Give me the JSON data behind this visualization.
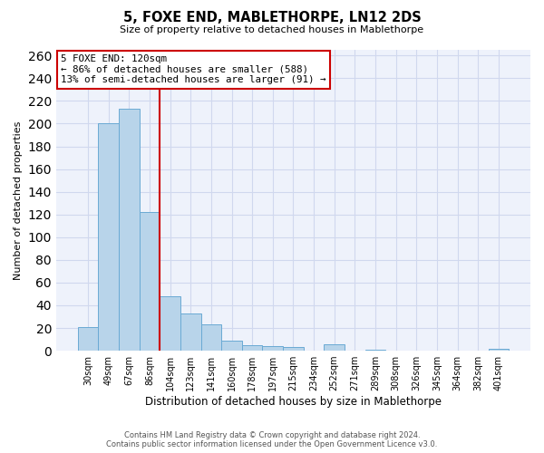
{
  "title": "5, FOXE END, MABLETHORPE, LN12 2DS",
  "subtitle": "Size of property relative to detached houses in Mablethorpe",
  "xlabel": "Distribution of detached houses by size in Mablethorpe",
  "ylabel": "Number of detached properties",
  "categories": [
    "30sqm",
    "49sqm",
    "67sqm",
    "86sqm",
    "104sqm",
    "123sqm",
    "141sqm",
    "160sqm",
    "178sqm",
    "197sqm",
    "215sqm",
    "234sqm",
    "252sqm",
    "271sqm",
    "289sqm",
    "308sqm",
    "326sqm",
    "345sqm",
    "364sqm",
    "382sqm",
    "401sqm"
  ],
  "values": [
    21,
    200,
    213,
    122,
    48,
    33,
    23,
    9,
    5,
    4,
    3,
    0,
    6,
    0,
    1,
    0,
    0,
    0,
    0,
    0,
    2
  ],
  "bar_color": "#b8d4ea",
  "bar_edge_color": "#6aaad4",
  "vline_x": 3.5,
  "vline_color": "#cc0000",
  "annotation_title": "5 FOXE END: 120sqm",
  "annotation_line1": "← 86% of detached houses are smaller (588)",
  "annotation_line2": "13% of semi-detached houses are larger (91) →",
  "box_color": "white",
  "box_edge_color": "#cc0000",
  "ylim": [
    0,
    265
  ],
  "yticks": [
    0,
    20,
    40,
    60,
    80,
    100,
    120,
    140,
    160,
    180,
    200,
    220,
    240,
    260
  ],
  "footer_line1": "Contains HM Land Registry data © Crown copyright and database right 2024.",
  "footer_line2": "Contains public sector information licensed under the Open Government Licence v3.0.",
  "background_color": "#eef2fb",
  "grid_color": "#d0d8ee"
}
